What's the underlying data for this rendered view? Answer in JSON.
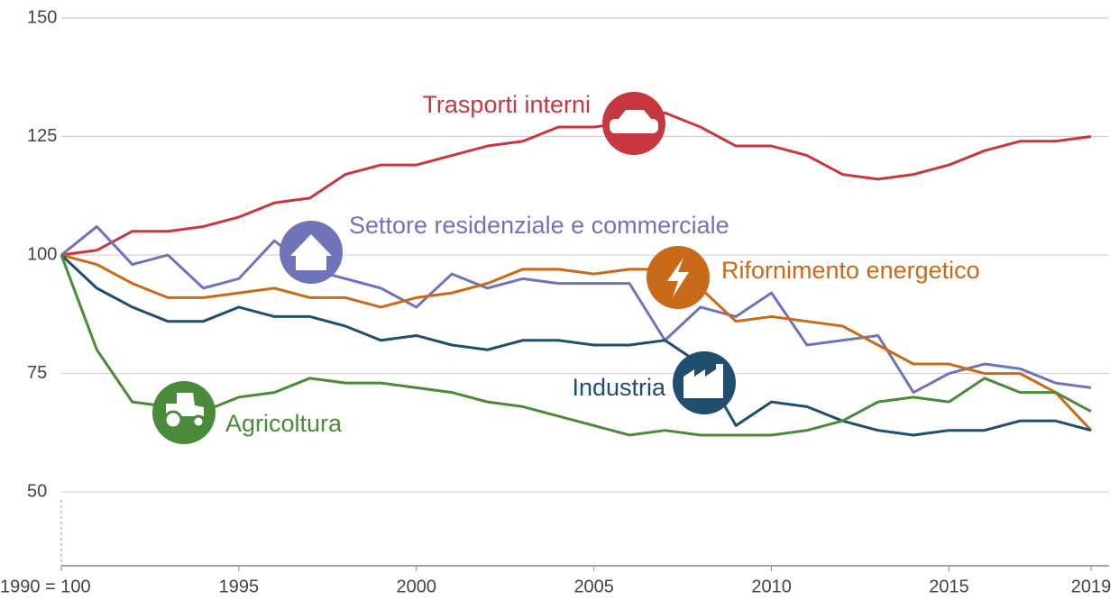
{
  "chart_data": {
    "type": "line",
    "x": [
      1990,
      1991,
      1992,
      1993,
      1994,
      1995,
      1996,
      1997,
      1998,
      1999,
      2000,
      2001,
      2002,
      2003,
      2004,
      2005,
      2006,
      2007,
      2008,
      2009,
      2010,
      2011,
      2012,
      2013,
      2014,
      2015,
      2016,
      2017,
      2018,
      2019
    ],
    "series": [
      {
        "name": "Trasporti interni",
        "color": "#c8373f",
        "values": [
          100,
          101,
          105,
          105,
          106,
          108,
          111,
          112,
          117,
          119,
          119,
          121,
          123,
          124,
          127,
          127,
          128,
          130,
          127,
          123,
          123,
          121,
          117,
          116,
          117,
          119,
          122,
          124,
          124,
          125
        ]
      },
      {
        "name": "Settore residenziale e commerciale",
        "color": "#6f73b8",
        "values": [
          100,
          106,
          98,
          100,
          93,
          95,
          103,
          97,
          95,
          93,
          89,
          96,
          93,
          95,
          94,
          94,
          94,
          82,
          89,
          87,
          92,
          81,
          82,
          83,
          71,
          75,
          77,
          76,
          73,
          72
        ]
      },
      {
        "name": "Rifornimento energetico",
        "color": "#c86a1a",
        "values": [
          100,
          98,
          94,
          91,
          91,
          92,
          93,
          91,
          91,
          89,
          91,
          92,
          94,
          97,
          97,
          96,
          97,
          97,
          93,
          86,
          87,
          86,
          85,
          81,
          77,
          77,
          75,
          75,
          71,
          63
        ]
      },
      {
        "name": "Industria",
        "color": "#1f4e6e",
        "values": [
          100,
          93,
          89,
          86,
          86,
          89,
          87,
          87,
          85,
          82,
          83,
          81,
          80,
          82,
          82,
          81,
          81,
          82,
          77,
          64,
          69,
          68,
          65,
          63,
          62,
          63,
          63,
          65,
          65,
          63
        ]
      },
      {
        "name": "Agricoltura",
        "color": "#4a8a3a",
        "values": [
          100,
          80,
          69,
          68,
          67,
          70,
          71,
          74,
          73,
          73,
          72,
          71,
          69,
          68,
          66,
          64,
          62,
          63,
          62,
          62,
          62,
          63,
          65,
          69,
          70,
          69,
          74,
          71,
          71,
          67
        ]
      }
    ],
    "xlim": [
      1990,
      2019
    ],
    "xticks": [
      {
        "value": 1990,
        "label": "1990 = 100"
      },
      1995,
      2000,
      2005,
      2010,
      2015,
      2019
    ],
    "ylim": [
      35,
      150
    ],
    "yticks": [
      50,
      75,
      100,
      125,
      150
    ],
    "grid": true
  }
}
